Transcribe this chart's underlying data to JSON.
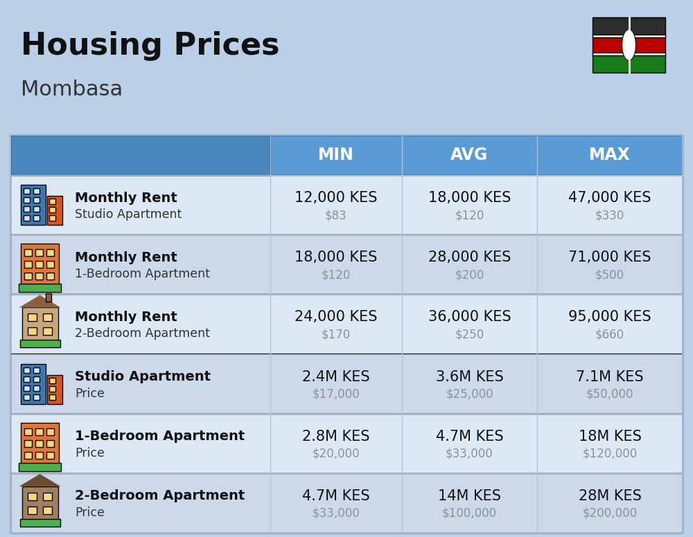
{
  "title": "Housing Prices",
  "subtitle": "Mombasa",
  "background_color": "#bad0e8",
  "header_color": "#5b9bd5",
  "header_text_color": "#ffffff",
  "row_colors": [
    "#dce8f3",
    "#ccd9ea"
  ],
  "rows": [
    {
      "icon_type": "studio_blue",
      "label_bold": "Monthly Rent",
      "label_sub": "Studio Apartment",
      "min_kes": "12,000 KES",
      "min_usd": "$83",
      "avg_kes": "18,000 KES",
      "avg_usd": "$120",
      "max_kes": "47,000 KES",
      "max_usd": "$330"
    },
    {
      "icon_type": "apt_orange",
      "label_bold": "Monthly Rent",
      "label_sub": "1-Bedroom Apartment",
      "min_kes": "18,000 KES",
      "min_usd": "$120",
      "avg_kes": "28,000 KES",
      "avg_usd": "$200",
      "max_kes": "71,000 KES",
      "max_usd": "$500"
    },
    {
      "icon_type": "apt_beige",
      "label_bold": "Monthly Rent",
      "label_sub": "2-Bedroom Apartment",
      "min_kes": "24,000 KES",
      "min_usd": "$170",
      "avg_kes": "36,000 KES",
      "avg_usd": "$250",
      "max_kes": "95,000 KES",
      "max_usd": "$660"
    },
    {
      "icon_type": "studio_blue2",
      "label_bold": "Studio Apartment",
      "label_sub": "Price",
      "min_kes": "2.4M KES",
      "min_usd": "$17,000",
      "avg_kes": "3.6M KES",
      "avg_usd": "$25,000",
      "max_kes": "7.1M KES",
      "max_usd": "$50,000"
    },
    {
      "icon_type": "apt_orange2",
      "label_bold": "1-Bedroom Apartment",
      "label_sub": "Price",
      "min_kes": "2.8M KES",
      "min_usd": "$20,000",
      "avg_kes": "4.7M KES",
      "avg_usd": "$33,000",
      "max_kes": "18M KES",
      "max_usd": "$120,000"
    },
    {
      "icon_type": "apt_brown",
      "label_bold": "2-Bedroom Apartment",
      "label_sub": "Price",
      "min_kes": "4.7M KES",
      "min_usd": "$33,000",
      "avg_kes": "14M KES",
      "avg_usd": "$100,000",
      "max_kes": "28M KES",
      "max_usd": "$200,000"
    }
  ]
}
